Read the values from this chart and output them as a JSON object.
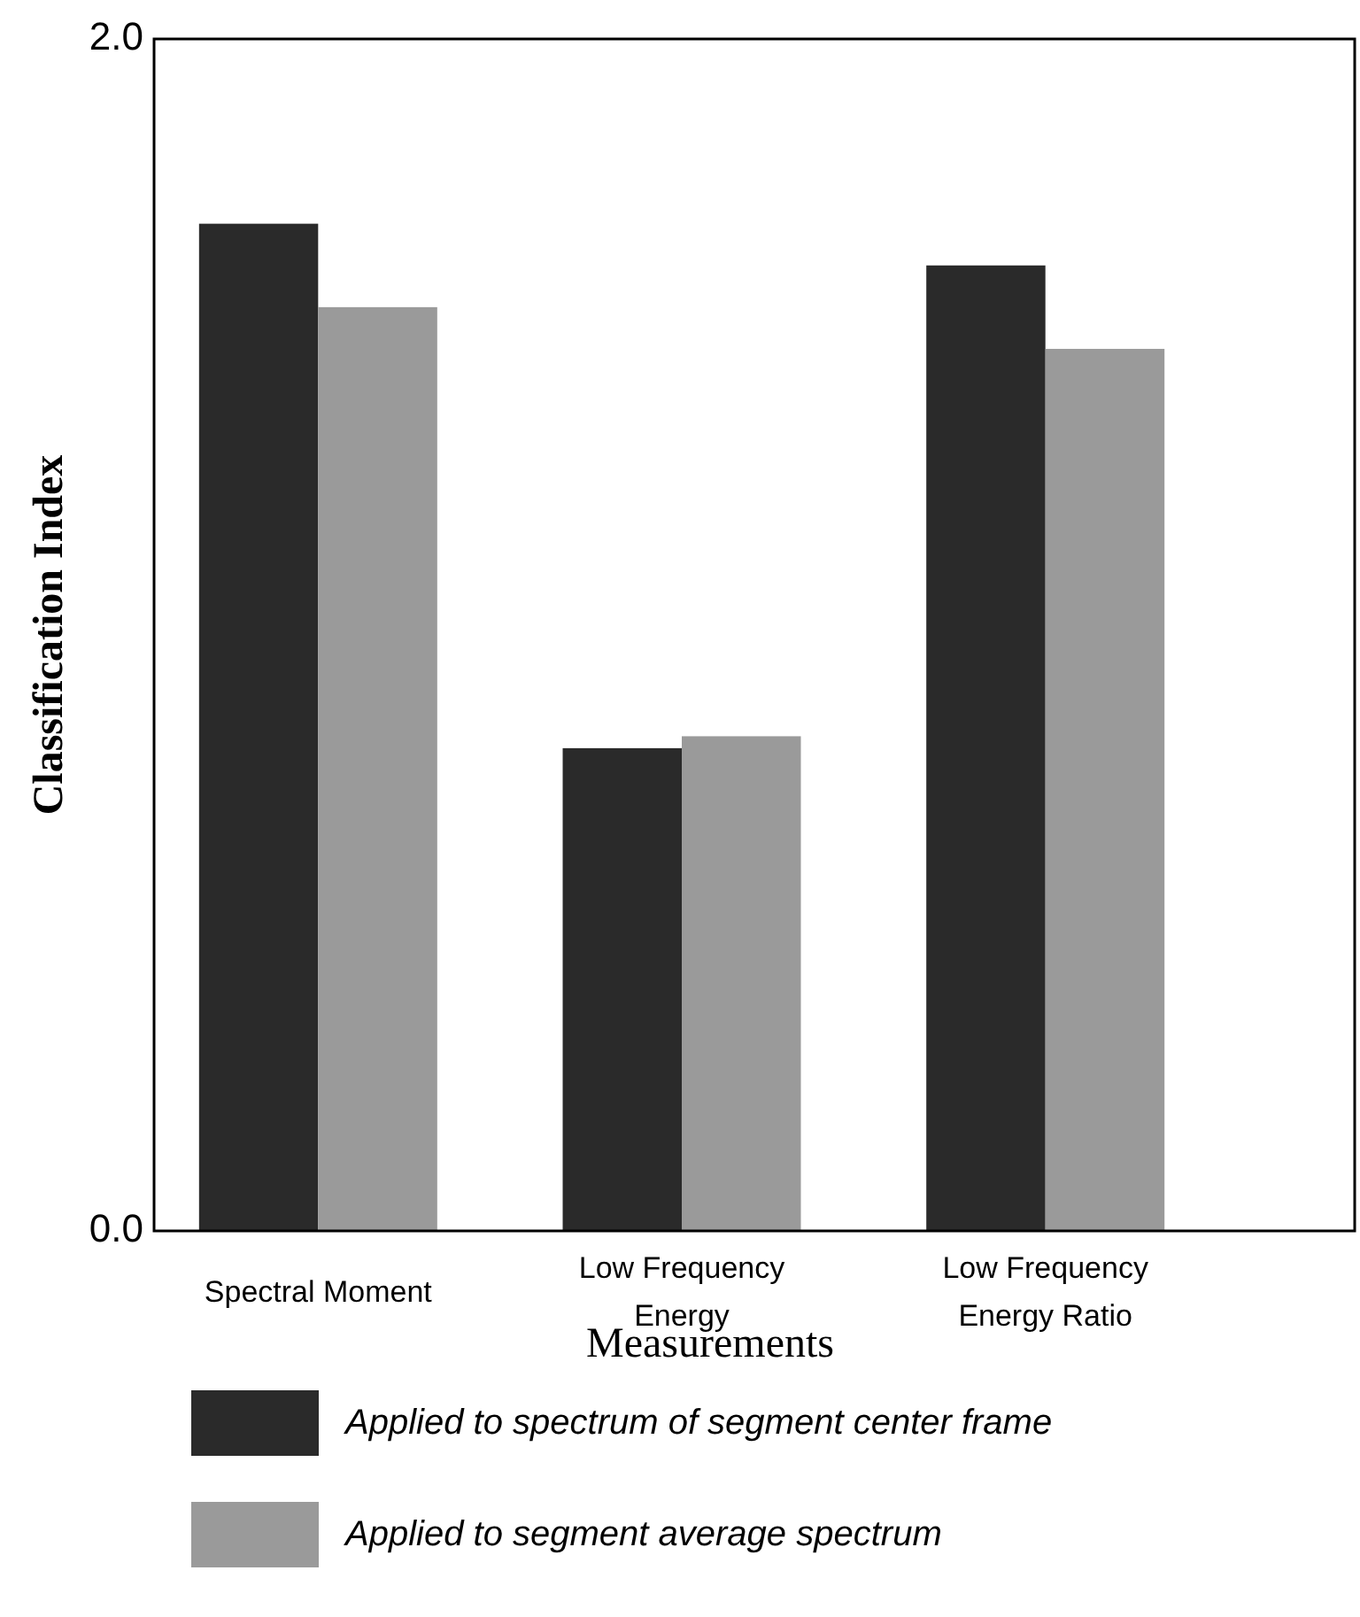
{
  "chart_data": {
    "type": "bar",
    "xlabel": "Measurements",
    "ylabel": "Classification Index",
    "categories": [
      "Spectral Moment",
      "Low Frequency Energy",
      "Low Frequency Energy Ratio"
    ],
    "series": [
      {
        "name": "Applied to spectrum of segment center frame",
        "color": "#2a2a2a",
        "values": [
          1.69,
          0.81,
          1.62
        ]
      },
      {
        "name": "Applied to segment average spectrum",
        "color": "#9a9a9a",
        "values": [
          1.55,
          0.83,
          1.48
        ]
      }
    ],
    "ylim": [
      0,
      2
    ],
    "yticks": [
      {
        "value": 0,
        "label": "0.0"
      },
      {
        "value": 2,
        "label": "2.0"
      }
    ],
    "legend": "bottom"
  }
}
